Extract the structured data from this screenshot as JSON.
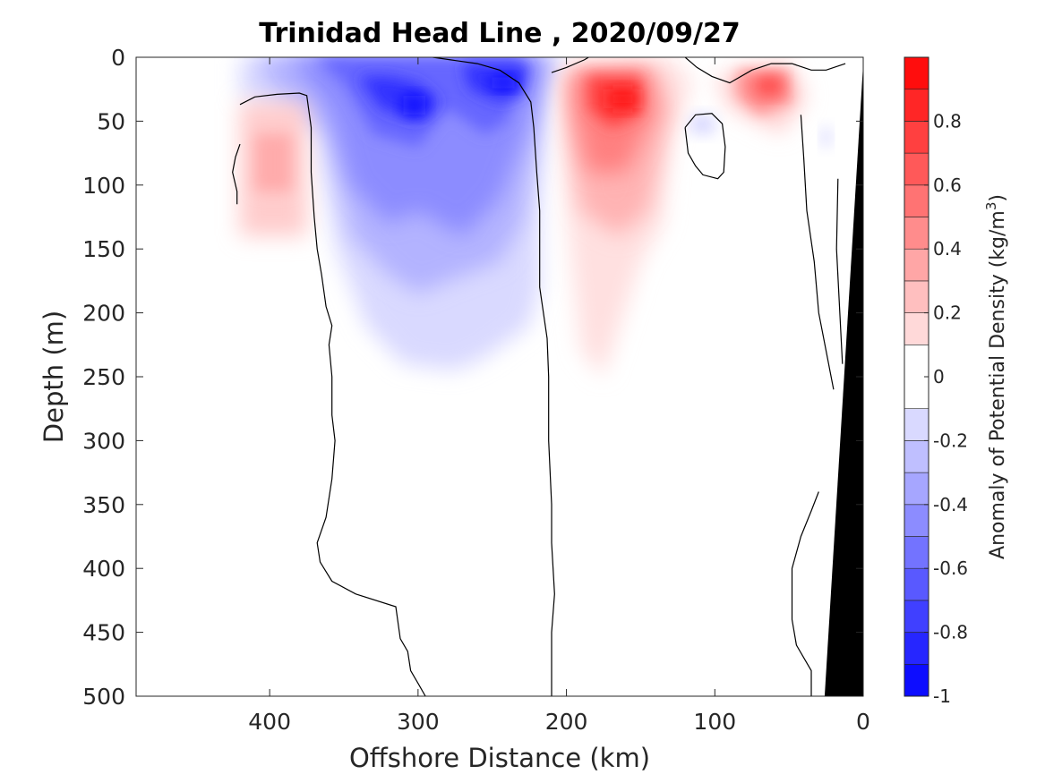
{
  "chart_data": {
    "type": "heatmap",
    "title": "Trinidad Head Line , 2020/09/27",
    "xlabel": "Offshore Distance (km)",
    "ylabel": "Depth (m)",
    "xlim": [
      490,
      0
    ],
    "ylim": [
      0,
      500
    ],
    "x_ticks": [
      400,
      300,
      200,
      100,
      0
    ],
    "y_ticks": [
      0,
      50,
      100,
      150,
      200,
      250,
      300,
      350,
      400,
      450,
      500
    ],
    "x_reversed": true,
    "y_reversed": true,
    "colorbar": {
      "label": "Anomaly of Potential Density (kg/m",
      "label_superscript": "3",
      "label_suffix": ")",
      "range": [
        -1,
        1
      ],
      "tick_values": [
        0.8,
        0.6,
        0.4,
        0.2,
        0,
        -0.2,
        -0.4,
        -0.6,
        -0.8,
        -1
      ],
      "tick_labels": [
        "0.8",
        "0.6",
        "0.4",
        "0.2",
        "0",
        "-0.2",
        "-0.4",
        "-0.6",
        "-0.8",
        "-1"
      ],
      "levels": [
        -1,
        -0.9,
        -0.8,
        -0.7,
        -0.6,
        -0.5,
        -0.4,
        -0.3,
        -0.2,
        -0.1,
        0.1,
        0.2,
        0.3,
        0.4,
        0.5,
        0.6,
        0.7,
        0.8,
        0.9,
        1.0
      ],
      "colormap": "blue-white-red",
      "low_color": "#0000ff",
      "mid_color": "#ffffff",
      "high_color": "#ff0000"
    },
    "features": [
      {
        "type": "negative_anomaly",
        "x_range": [
          420,
          215
        ],
        "depth_range": [
          0,
          245
        ],
        "peak_value": -0.9
      },
      {
        "type": "negative_core",
        "x_center": 300,
        "depth_center": 35,
        "value": -0.85
      },
      {
        "type": "negative_core",
        "x_center": 240,
        "depth_center": 20,
        "value": -0.95
      },
      {
        "type": "positive_anomaly",
        "x_range": [
          200,
          130
        ],
        "depth_range": [
          0,
          250
        ],
        "peak_value": 0.9
      },
      {
        "type": "positive_core",
        "x_center": 160,
        "depth_center": 30,
        "value": 0.9
      },
      {
        "type": "positive_anomaly",
        "x_range": [
          100,
          45
        ],
        "depth_range": [
          0,
          60
        ],
        "peak_value": 0.7
      },
      {
        "type": "positive_anomaly",
        "x_range": [
          420,
          375
        ],
        "depth_range": [
          35,
          140
        ],
        "peak_value": 0.35
      },
      {
        "type": "negative_anomaly",
        "x_range": [
          120,
          95
        ],
        "depth_range": [
          40,
          60
        ],
        "peak_value": -0.15
      }
    ],
    "bathymetry": {
      "color": "#000000",
      "points": [
        [
          0,
          5
        ],
        [
          0,
          500
        ],
        [
          26,
          500
        ]
      ]
    },
    "zero_contours": [
      [
        [
          420,
          37
        ],
        [
          410,
          31
        ],
        [
          395,
          29
        ],
        [
          380,
          28
        ],
        [
          375,
          30
        ],
        [
          372,
          55
        ],
        [
          372,
          90
        ],
        [
          370,
          125
        ],
        [
          368,
          150
        ],
        [
          365,
          170
        ],
        [
          362,
          195
        ],
        [
          358,
          210
        ],
        [
          360,
          225
        ],
        [
          358,
          250
        ],
        [
          358,
          280
        ],
        [
          356,
          300
        ],
        [
          358,
          330
        ],
        [
          362,
          360
        ],
        [
          368,
          380
        ],
        [
          366,
          395
        ],
        [
          358,
          410
        ],
        [
          342,
          420
        ],
        [
          315,
          430
        ],
        [
          312,
          455
        ],
        [
          307,
          465
        ],
        [
          305,
          480
        ],
        [
          300,
          490
        ],
        [
          295,
          500
        ]
      ],
      [
        [
          210,
          500
        ],
        [
          210,
          450
        ],
        [
          208,
          420
        ],
        [
          210,
          380
        ],
        [
          210,
          350
        ],
        [
          212,
          300
        ],
        [
          212,
          250
        ],
        [
          213,
          220
        ],
        [
          218,
          180
        ],
        [
          218,
          150
        ],
        [
          218,
          120
        ],
        [
          220,
          90
        ],
        [
          222,
          55
        ],
        [
          224,
          35
        ],
        [
          232,
          20
        ],
        [
          245,
          10
        ],
        [
          260,
          5
        ],
        [
          278,
          2
        ],
        [
          290,
          0
        ]
      ],
      [
        [
          185,
          0
        ],
        [
          188,
          2
        ],
        [
          200,
          8
        ],
        [
          210,
          12
        ]
      ],
      [
        [
          120,
          0
        ],
        [
          112,
          8
        ],
        [
          102,
          15
        ],
        [
          90,
          20
        ],
        [
          75,
          10
        ],
        [
          62,
          5
        ],
        [
          48,
          5
        ],
        [
          35,
          10
        ],
        [
          25,
          10
        ],
        [
          12,
          5
        ]
      ],
      [
        [
          120,
          55
        ],
        [
          113,
          45
        ],
        [
          102,
          44
        ],
        [
          95,
          52
        ],
        [
          93,
          70
        ],
        [
          94,
          90
        ],
        [
          98,
          95
        ],
        [
          108,
          92
        ],
        [
          113,
          85
        ],
        [
          118,
          75
        ],
        [
          120,
          55
        ]
      ],
      [
        [
          42,
          45
        ],
        [
          40,
          80
        ],
        [
          38,
          120
        ],
        [
          33,
          160
        ],
        [
          30,
          200
        ],
        [
          25,
          230
        ],
        [
          20,
          260
        ]
      ],
      [
        [
          17,
          95
        ],
        [
          18,
          150
        ],
        [
          14,
          240
        ]
      ],
      [
        [
          35,
          500
        ],
        [
          35,
          480
        ],
        [
          40,
          470
        ],
        [
          45,
          460
        ],
        [
          48,
          440
        ],
        [
          48,
          400
        ],
        [
          42,
          375
        ],
        [
          35,
          355
        ],
        [
          30,
          340
        ]
      ],
      [
        [
          420,
          68
        ],
        [
          423,
          78
        ],
        [
          425,
          90
        ],
        [
          422,
          105
        ],
        [
          422,
          115
        ]
      ]
    ]
  }
}
